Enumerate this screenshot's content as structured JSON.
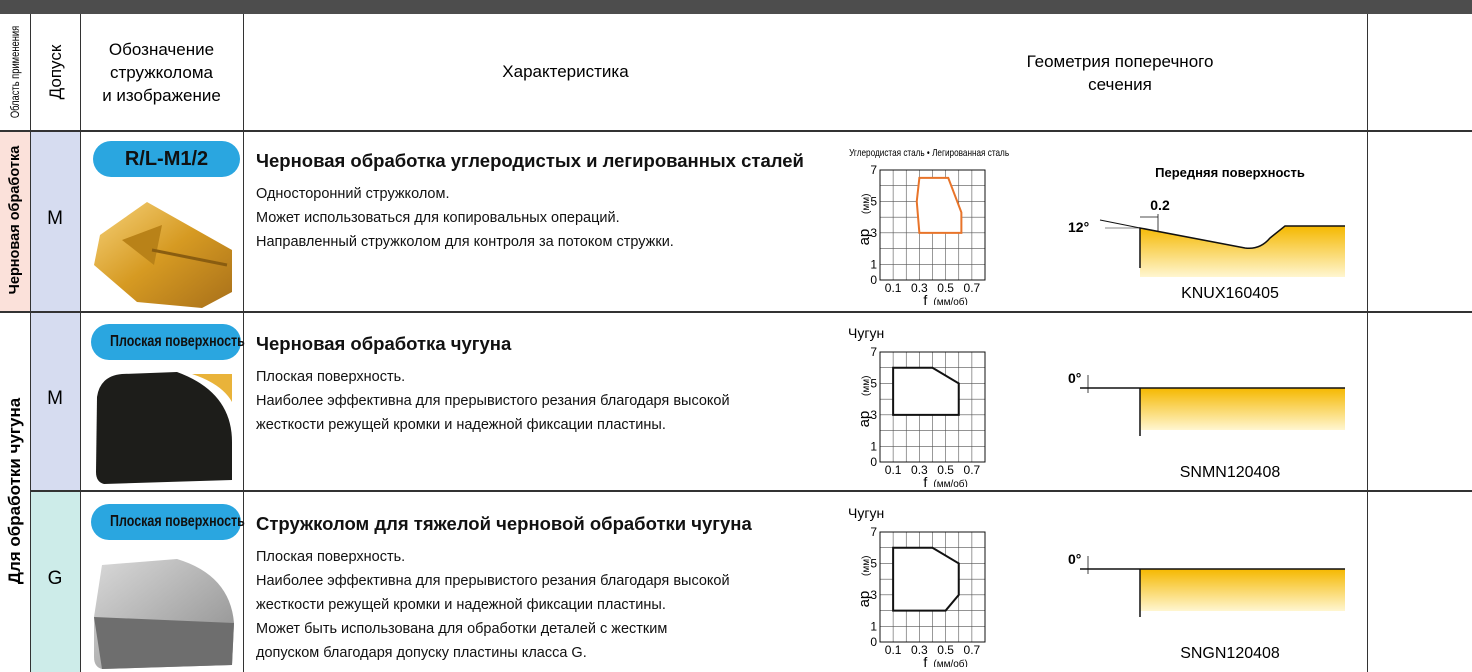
{
  "header": {
    "area": "Область применения",
    "tolerance": "Допуск",
    "designation": [
      "Обозначение",
      "стружколома",
      "и изображение"
    ],
    "characteristic": "Характеристика",
    "geometry": [
      "Геометрия поперечного",
      "сечения"
    ]
  },
  "groups": [
    {
      "label": "Черновая обработка"
    },
    {
      "label": "Для обработки чугуна"
    }
  ],
  "range_chart": {
    "y_label": "ap",
    "y_unit": "(мм)",
    "x_label": "f",
    "x_unit": "(мм/об)",
    "yticks": [
      "7",
      "5",
      "3",
      "1",
      "0"
    ],
    "xticks": [
      "0.1",
      "0.3",
      "0.5",
      "0.7"
    ]
  },
  "rows": [
    {
      "tolerance": "M",
      "badge": "R/L-M1/2",
      "title": "Черновая обработка углеродистых и легированных сталей",
      "lines": [
        "Односторонний стружколом.",
        "Может использоваться для копировальных операций.",
        "Направленный стружколом для контроля за потоком стружки."
      ],
      "chart_title": "Углеродистая сталь • Легированная сталь",
      "geometry": {
        "face": "Передняя поверхность",
        "land": "0.2",
        "angle": "12°"
      },
      "code": "KNUX160405"
    },
    {
      "tolerance": "M",
      "badge": "Плоская поверхность",
      "title": "Черновая обработка чугуна",
      "lines": [
        "Плоская поверхность.",
        "Наиболее эффективна для прерывистого резания благодаря высокой",
        "жесткости режущей кромки и надежной фиксации пластины."
      ],
      "chart_title": "Чугун",
      "geometry": {
        "angle": "0°"
      },
      "code": "SNMN120408"
    },
    {
      "tolerance": "G",
      "badge": "Плоская поверхность",
      "title": "Стружколом для тяжелой черновой обработки чугуна",
      "lines": [
        "Плоская поверхность.",
        "Наиболее эффективна для прерывистого резания благодаря высокой",
        "жесткости режущей кромки и надежной фиксации пластины.",
        "Может быть использована для обработки деталей с жестким",
        "допуском  благодаря допуску пластины класса G."
      ],
      "chart_title": "Чугун",
      "geometry": {
        "angle": "0°"
      },
      "code": "SNGN120408"
    }
  ]
}
